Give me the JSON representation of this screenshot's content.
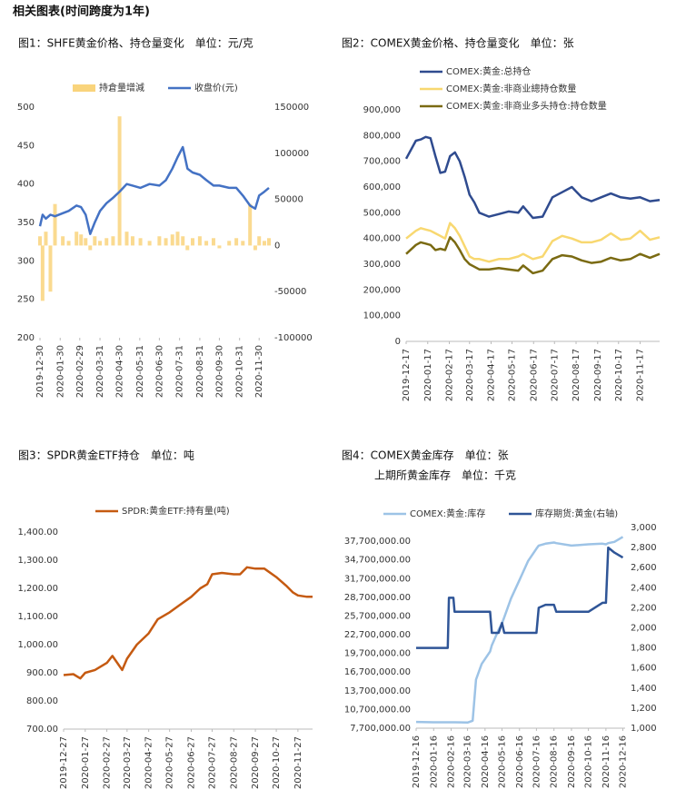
{
  "header": "相关图表(时间跨度为1年)",
  "chart_data": [
    {
      "type": "line",
      "title": "图1：SHFE黄金价格、持仓量变化　单位：元/克",
      "x": [
        "2019-12-30",
        "2020-01-03",
        "2020-01-08",
        "2020-01-15",
        "2020-01-22",
        "2020-02-03",
        "2020-02-12",
        "2020-02-24",
        "2020-03-02",
        "2020-03-09",
        "2020-03-16",
        "2020-03-23",
        "2020-03-31",
        "2020-04-10",
        "2020-04-20",
        "2020-04-30",
        "2020-05-11",
        "2020-05-20",
        "2020-06-01",
        "2020-06-15",
        "2020-06-30",
        "2020-07-10",
        "2020-07-20",
        "2020-07-28",
        "2020-08-05",
        "2020-08-12",
        "2020-08-20",
        "2020-08-31",
        "2020-09-10",
        "2020-09-21",
        "2020-09-30",
        "2020-10-15",
        "2020-10-26",
        "2020-11-05",
        "2020-11-16",
        "2020-11-24",
        "2020-11-30",
        "2020-12-08",
        "2020-12-15"
      ],
      "series": [
        {
          "name": "持倉量增減",
          "type": "bar",
          "axis": "y2",
          "color": "#f9d47c",
          "values": [
            10000,
            -60000,
            15000,
            -50000,
            45000,
            10000,
            5000,
            15000,
            12000,
            8000,
            -5000,
            10000,
            5000,
            8000,
            10000,
            140000,
            15000,
            10000,
            8000,
            5000,
            10000,
            8000,
            12000,
            15000,
            10000,
            -5000,
            8000,
            10000,
            5000,
            8000,
            -3000,
            5000,
            8000,
            5000,
            45000,
            -5000,
            10000,
            5000,
            8000
          ]
        },
        {
          "name": "收盘价(元)",
          "color": "#4472c4",
          "values": [
            345,
            360,
            355,
            360,
            358,
            362,
            365,
            372,
            370,
            360,
            335,
            350,
            365,
            375,
            382,
            390,
            400,
            398,
            395,
            400,
            398,
            405,
            420,
            435,
            448,
            420,
            415,
            412,
            405,
            398,
            398,
            395,
            395,
            385,
            372,
            368,
            385,
            390,
            395
          ]
        }
      ],
      "xlim": [
        "2019-12-30",
        "2020-12-15"
      ],
      "xticks": [
        "2019-12-30",
        "2020-01-30",
        "2020-02-29",
        "2020-03-31",
        "2020-04-30",
        "2020-05-31",
        "2020-06-30",
        "2020-07-31",
        "2020-08-31",
        "2020-09-30",
        "2020-10-31",
        "2020-11-30"
      ],
      "ylim": [
        200,
        500
      ],
      "yticks": [
        200,
        250,
        300,
        350,
        400,
        450,
        500
      ],
      "y2lim": [
        -100000,
        150000
      ],
      "y2ticks": [
        -100000,
        -50000,
        0,
        50000,
        100000,
        150000
      ],
      "grid": false,
      "legend": "top"
    },
    {
      "type": "line",
      "title": "图2：COMEX黄金价格、持仓量变化　单位：张",
      "x": [
        "2019-12-17",
        "2019-12-31",
        "2020-01-07",
        "2020-01-14",
        "2020-01-21",
        "2020-01-28",
        "2020-02-04",
        "2020-02-11",
        "2020-02-18",
        "2020-02-25",
        "2020-03-03",
        "2020-03-10",
        "2020-03-17",
        "2020-03-24",
        "2020-03-31",
        "2020-04-14",
        "2020-04-28",
        "2020-05-12",
        "2020-05-26",
        "2020-06-02",
        "2020-06-16",
        "2020-06-30",
        "2020-07-14",
        "2020-07-28",
        "2020-08-11",
        "2020-08-25",
        "2020-09-08",
        "2020-09-22",
        "2020-10-06",
        "2020-10-20",
        "2020-11-03",
        "2020-11-17",
        "2020-12-01",
        "2020-12-15"
      ],
      "series": [
        {
          "name": "COMEX:黄金:总持仓",
          "color": "#2f4b8f",
          "values": [
            710000,
            780000,
            785000,
            795000,
            790000,
            720000,
            655000,
            660000,
            720000,
            735000,
            700000,
            640000,
            570000,
            540000,
            500000,
            485000,
            495000,
            505000,
            500000,
            525000,
            480000,
            485000,
            560000,
            580000,
            600000,
            560000,
            545000,
            560000,
            575000,
            560000,
            555000,
            560000,
            545000,
            550000
          ]
        },
        {
          "name": "COMEX:黄金:非商业總持仓数量",
          "color": "#f8d870",
          "values": [
            400000,
            430000,
            440000,
            435000,
            430000,
            420000,
            410000,
            400000,
            460000,
            440000,
            410000,
            370000,
            330000,
            320000,
            320000,
            310000,
            320000,
            320000,
            330000,
            340000,
            320000,
            330000,
            390000,
            410000,
            400000,
            385000,
            385000,
            395000,
            420000,
            395000,
            400000,
            430000,
            395000,
            405000
          ]
        },
        {
          "name": "COMEX:黄金:非商业多头持仓:持仓数量",
          "color": "#7a6a12",
          "values": [
            340000,
            375000,
            385000,
            380000,
            375000,
            355000,
            360000,
            355000,
            405000,
            385000,
            355000,
            320000,
            300000,
            290000,
            280000,
            280000,
            285000,
            280000,
            275000,
            295000,
            265000,
            275000,
            320000,
            335000,
            330000,
            315000,
            305000,
            310000,
            325000,
            315000,
            320000,
            340000,
            325000,
            340000
          ]
        }
      ],
      "xlim": [
        "2019-12-17",
        "2020-12-15"
      ],
      "xticks": [
        "2019-12-17",
        "2020-01-17",
        "2020-02-17",
        "2020-03-17",
        "2020-04-17",
        "2020-05-17",
        "2020-06-17",
        "2020-07-17",
        "2020-08-17",
        "2020-09-17",
        "2020-10-17",
        "2020-11-17"
      ],
      "ylim": [
        0,
        900000
      ],
      "yticks": [
        0,
        {
          "value": 100000,
          "label": "100,000"
        },
        {
          "value": 200000,
          "label": "200,000"
        },
        {
          "value": 300000,
          "label": "300,000"
        },
        {
          "value": 400000,
          "label": "400,000"
        },
        {
          "value": 500000,
          "label": "500,000"
        },
        {
          "value": 600000,
          "label": "600,000"
        },
        {
          "value": 700000,
          "label": "700,000"
        },
        {
          "value": 800000,
          "label": "800,000"
        },
        {
          "value": 900000,
          "label": "900,000"
        }
      ],
      "grid": false,
      "legend": "top-left"
    },
    {
      "type": "line",
      "title": "图3：SPDR黄金ETF持仓　单位：吨",
      "x": [
        "2019-12-27",
        "2020-01-10",
        "2020-01-20",
        "2020-01-27",
        "2020-02-10",
        "2020-02-27",
        "2020-03-06",
        "2020-03-13",
        "2020-03-20",
        "2020-03-27",
        "2020-04-10",
        "2020-04-27",
        "2020-05-10",
        "2020-05-27",
        "2020-06-10",
        "2020-06-27",
        "2020-07-10",
        "2020-07-20",
        "2020-07-27",
        "2020-08-10",
        "2020-08-27",
        "2020-09-05",
        "2020-09-15",
        "2020-09-27",
        "2020-10-10",
        "2020-10-27",
        "2020-11-10",
        "2020-11-20",
        "2020-11-27",
        "2020-12-10",
        "2020-12-18"
      ],
      "series": [
        {
          "name": "SPDR:黄金ETF:持有量(吨)",
          "color": "#c55a11",
          "values": [
            892,
            895,
            880,
            900,
            910,
            935,
            960,
            935,
            910,
            950,
            1000,
            1040,
            1090,
            1115,
            1140,
            1170,
            1200,
            1215,
            1250,
            1255,
            1250,
            1250,
            1275,
            1270,
            1270,
            1240,
            1210,
            1185,
            1175,
            1170,
            1170
          ]
        }
      ],
      "xlim": [
        "2019-12-27",
        "2020-12-18"
      ],
      "xticks": [
        "2019-12-27",
        "2020-01-27",
        "2020-02-27",
        "2020-03-27",
        "2020-04-27",
        "2020-05-27",
        "2020-06-27",
        "2020-07-27",
        "2020-08-27",
        "2020-09-27",
        "2020-10-27",
        "2020-11-27"
      ],
      "ylim": [
        700,
        1400
      ],
      "yticks": [
        {
          "value": 700,
          "label": "700.00"
        },
        {
          "value": 800,
          "label": "800.00"
        },
        {
          "value": 900,
          "label": "900.00"
        },
        {
          "value": 1000,
          "label": "1,000.00"
        },
        {
          "value": 1100,
          "label": "1,100.00"
        },
        {
          "value": 1200,
          "label": "1,200.00"
        },
        {
          "value": 1300,
          "label": "1,300.00"
        },
        {
          "value": 1400,
          "label": "1,400.00"
        }
      ],
      "grid": false,
      "legend": "top"
    },
    {
      "type": "line",
      "title": "图4：COMEX黄金库存　单位：张",
      "subtitle": "上期所黄金库存　单位：千克",
      "x": [
        "2019-12-16",
        "2020-01-16",
        "2020-02-10",
        "2020-02-12",
        "2020-02-20",
        "2020-02-22",
        "2020-03-16",
        "2020-03-25",
        "2020-03-31",
        "2020-04-10",
        "2020-04-25",
        "2020-04-28",
        "2020-05-10",
        "2020-05-16",
        "2020-05-20",
        "2020-06-01",
        "2020-06-16",
        "2020-07-01",
        "2020-07-16",
        "2020-07-20",
        "2020-08-01",
        "2020-08-16",
        "2020-08-20",
        "2020-09-16",
        "2020-10-16",
        "2020-11-10",
        "2020-11-16",
        "2020-11-20",
        "2020-12-01",
        "2020-12-16"
      ],
      "series": [
        {
          "name": "COMEX:黄金:库存",
          "color": "#9dc3e6",
          "values": [
            8700000,
            8650000,
            8650000,
            8650000,
            8650000,
            8650000,
            8600000,
            8900000,
            15500000,
            18000000,
            20000000,
            21000000,
            23500000,
            24500000,
            25500000,
            28500000,
            31500000,
            34500000,
            36500000,
            37000000,
            37300000,
            37500000,
            37400000,
            37000000,
            37200000,
            37300000,
            37200000,
            37400000,
            37600000,
            38400000
          ]
        },
        {
          "name": "库存期货:黄金(右轴)",
          "axis": "y2",
          "color": "#2f5597",
          "values": [
            1800,
            1800,
            1800,
            2300,
            2300,
            2160,
            2160,
            2160,
            2160,
            2160,
            2160,
            1950,
            1950,
            2050,
            1950,
            1950,
            1950,
            1950,
            1950,
            2200,
            2230,
            2230,
            2160,
            2160,
            2160,
            2250,
            2250,
            2800,
            2750,
            2700
          ]
        }
      ],
      "xlim": [
        "2019-12-16",
        "2020-12-20"
      ],
      "xticks": [
        "2019-12-16",
        "2020-01-16",
        "2020-02-16",
        "2020-03-16",
        "2020-04-16",
        "2020-05-16",
        "2020-06-16",
        "2020-07-16",
        "2020-08-16",
        "2020-09-16",
        "2020-10-16",
        "2020-11-16",
        "2020-12-16"
      ],
      "ylim": [
        7700000,
        39900000
      ],
      "yticks": [
        {
          "value": 7700000,
          "label": "7,700,000.00"
        },
        {
          "value": 10700000,
          "label": "10,700,000.00"
        },
        {
          "value": 13700000,
          "label": "13,700,000.00"
        },
        {
          "value": 16700000,
          "label": "16,700,000.00"
        },
        {
          "value": 19700000,
          "label": "19,700,000.00"
        },
        {
          "value": 22700000,
          "label": "22,700,000.00"
        },
        {
          "value": 25700000,
          "label": "25,700,000.00"
        },
        {
          "value": 28700000,
          "label": "28,700,000.00"
        },
        {
          "value": 31700000,
          "label": "31,700,000.00"
        },
        {
          "value": 34700000,
          "label": "34,700,000.00"
        },
        {
          "value": 37700000,
          "label": "37,700,000.00"
        }
      ],
      "y2lim": [
        1000,
        3000
      ],
      "y2ticks": [
        {
          "value": 1000,
          "label": "1,000"
        },
        {
          "value": 1200,
          "label": "1,200"
        },
        {
          "value": 1400,
          "label": "1,400"
        },
        {
          "value": 1600,
          "label": "1,600"
        },
        {
          "value": 1800,
          "label": "1,800"
        },
        {
          "value": 2000,
          "label": "2,000"
        },
        {
          "value": 2200,
          "label": "2,200"
        },
        {
          "value": 2400,
          "label": "2,400"
        },
        {
          "value": 2600,
          "label": "2,600"
        },
        {
          "value": 2800,
          "label": "2,800"
        },
        {
          "value": 3000,
          "label": "3,000"
        }
      ],
      "grid": false,
      "legend": "top"
    }
  ]
}
